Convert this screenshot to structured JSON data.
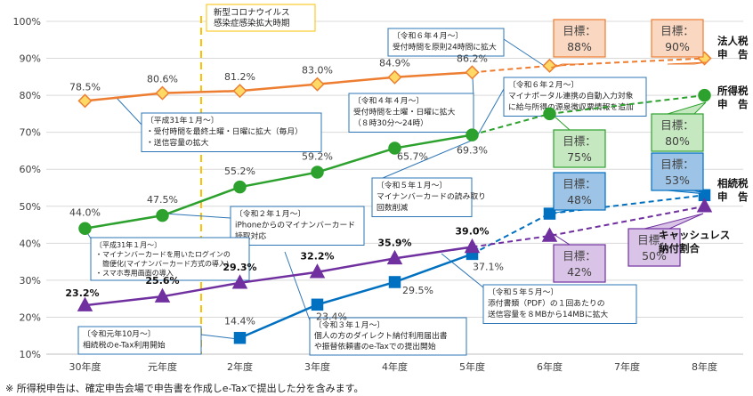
{
  "chart_data": {
    "type": "line",
    "categories": [
      "30年度",
      "元年度",
      "2年度",
      "3年度",
      "4年度",
      "5年度",
      "6年度",
      "7年度",
      "8年度"
    ],
    "ylim": [
      10,
      100
    ],
    "yticks": [
      "10%",
      "20%",
      "30%",
      "40%",
      "50%",
      "60%",
      "70%",
      "80%",
      "90%",
      "100%"
    ],
    "grid": true,
    "series": [
      {
        "name": "法人税申告",
        "name_lines": [
          "法人税",
          "申　告"
        ],
        "color": "#ED7D31",
        "marker": "diamond",
        "actual": [
          {
            "x": "30年度",
            "y": 78.5,
            "label": "78.5%"
          },
          {
            "x": "元年度",
            "y": 80.6,
            "label": "80.6%"
          },
          {
            "x": "2年度",
            "y": 81.2,
            "label": "81.2%"
          },
          {
            "x": "3年度",
            "y": 83.0,
            "label": "83.0%"
          },
          {
            "x": "4年度",
            "y": 84.9,
            "label": "84.9%"
          },
          {
            "x": "5年度",
            "y": 86.2,
            "label": "86.2%"
          }
        ],
        "targets": [
          {
            "x": "6年度",
            "y": 88,
            "label": "目標：88%"
          },
          {
            "x": "8年度",
            "y": 90,
            "label": "目標：90%"
          }
        ]
      },
      {
        "name": "所得税申告",
        "name_lines": [
          "所得税",
          "申　告"
        ],
        "color": "#2DA12D",
        "marker": "circle",
        "actual": [
          {
            "x": "30年度",
            "y": 44.0,
            "label": "44.0%"
          },
          {
            "x": "元年度",
            "y": 47.5,
            "label": "47.5%"
          },
          {
            "x": "2年度",
            "y": 55.2,
            "label": "55.2%"
          },
          {
            "x": "3年度",
            "y": 59.2,
            "label": "59.2%"
          },
          {
            "x": "4年度",
            "y": 65.7,
            "label": "65.7%"
          },
          {
            "x": "5年度",
            "y": 69.3,
            "label": "69.3%"
          }
        ],
        "targets": [
          {
            "x": "6年度",
            "y": 75,
            "label": "目標：75%"
          },
          {
            "x": "8年度",
            "y": 80,
            "label": "目標：80%"
          }
        ]
      },
      {
        "name": "相続税申告",
        "name_lines": [
          "相続税",
          "申　告"
        ],
        "color": "#0070C0",
        "marker": "square",
        "actual": [
          {
            "x": "2年度",
            "y": 14.4,
            "label": "14.4%"
          },
          {
            "x": "3年度",
            "y": 23.4,
            "label": "23.4%"
          },
          {
            "x": "4年度",
            "y": 29.5,
            "label": "29.5%"
          },
          {
            "x": "5年度",
            "y": 37.1,
            "label": "37.1%"
          }
        ],
        "targets": [
          {
            "x": "6年度",
            "y": 48,
            "label": "目標：48%"
          },
          {
            "x": "8年度",
            "y": 53,
            "label": "目標：53%"
          }
        ]
      },
      {
        "name": "キャッシュレス納付割合",
        "name_lines": [
          "キャッシュレス",
          "納付割合"
        ],
        "color": "#7030A0",
        "marker": "triangle",
        "actual": [
          {
            "x": "30年度",
            "y": 23.2,
            "label": "23.2%"
          },
          {
            "x": "元年度",
            "y": 25.6,
            "label": "25.6%"
          },
          {
            "x": "2年度",
            "y": 29.3,
            "label": "29.3%"
          },
          {
            "x": "3年度",
            "y": 32.2,
            "label": "32.2%"
          },
          {
            "x": "4年度",
            "y": 35.9,
            "label": "35.9%"
          },
          {
            "x": "5年度",
            "y": 39.0,
            "label": "39.0%"
          }
        ],
        "targets": [
          {
            "x": "6年度",
            "y": 42,
            "label": "目標：42%"
          },
          {
            "x": "8年度",
            "y": 50,
            "label": "目標：50%"
          }
        ]
      }
    ],
    "covid_marker": {
      "label_lines": [
        "新型コロナウイルス",
        "感染症感染拡大時期"
      ],
      "color": "#FFC000"
    },
    "annotations": [
      {
        "id": "h31",
        "lines": [
          "〔平成31年１月〜〕",
          "・受付時間を最終土曜・日曜に拡大（毎月）",
          "・送信容量の拡大"
        ]
      },
      {
        "id": "r6apr",
        "lines": [
          "〔令和６年４月〜〕",
          "受付時間を原則24時間に拡大"
        ]
      },
      {
        "id": "r6feb",
        "lines": [
          "〔令和６年２月〜〕",
          "マイナポータル連携の自動入力対象",
          "に給与所得の源泉徴収票情報を追加"
        ]
      },
      {
        "id": "r4apr",
        "lines": [
          "〔令和４年４月〜〕",
          "受付時間を土曜・日曜に拡大",
          "（８時30分〜24時）"
        ]
      },
      {
        "id": "r2jan",
        "lines": [
          "〔令和２年１月〜〕",
          "iPhoneからのマイナンバーカード",
          "読取対応"
        ]
      },
      {
        "id": "r5jan",
        "lines": [
          "〔令和５年１月〜〕",
          "マイナンバーカードの読み取り",
          "回数削減"
        ]
      },
      {
        "id": "h31b",
        "lines": [
          "〔平成31年１月〜〕",
          "・マイナンバーカードを用いたログインの",
          "　簡便化(マイナンバーカード方式の導入)",
          "・スマホ専用画面の導入"
        ]
      },
      {
        "id": "r5may",
        "lines": [
          "〔令和５年５月〜〕",
          "添付書類（PDF）の１回あたりの",
          "送信容量を８MBから14MBに拡大"
        ]
      },
      {
        "id": "r1oct",
        "lines": [
          "〔令和元年10月〜〕",
          "相続税のe-Tax利用開始"
        ]
      },
      {
        "id": "r3jan",
        "lines": [
          "〔令和３年１月〜〕",
          "個人の方のダイレクト納付利用届出書",
          "や振替依頼書のe-Taxでの提出開始"
        ]
      }
    ]
  },
  "footnote": "※ 所得税申告は、確定申告会場で申告書を作成しe-Taxで提出した分を含みます。"
}
